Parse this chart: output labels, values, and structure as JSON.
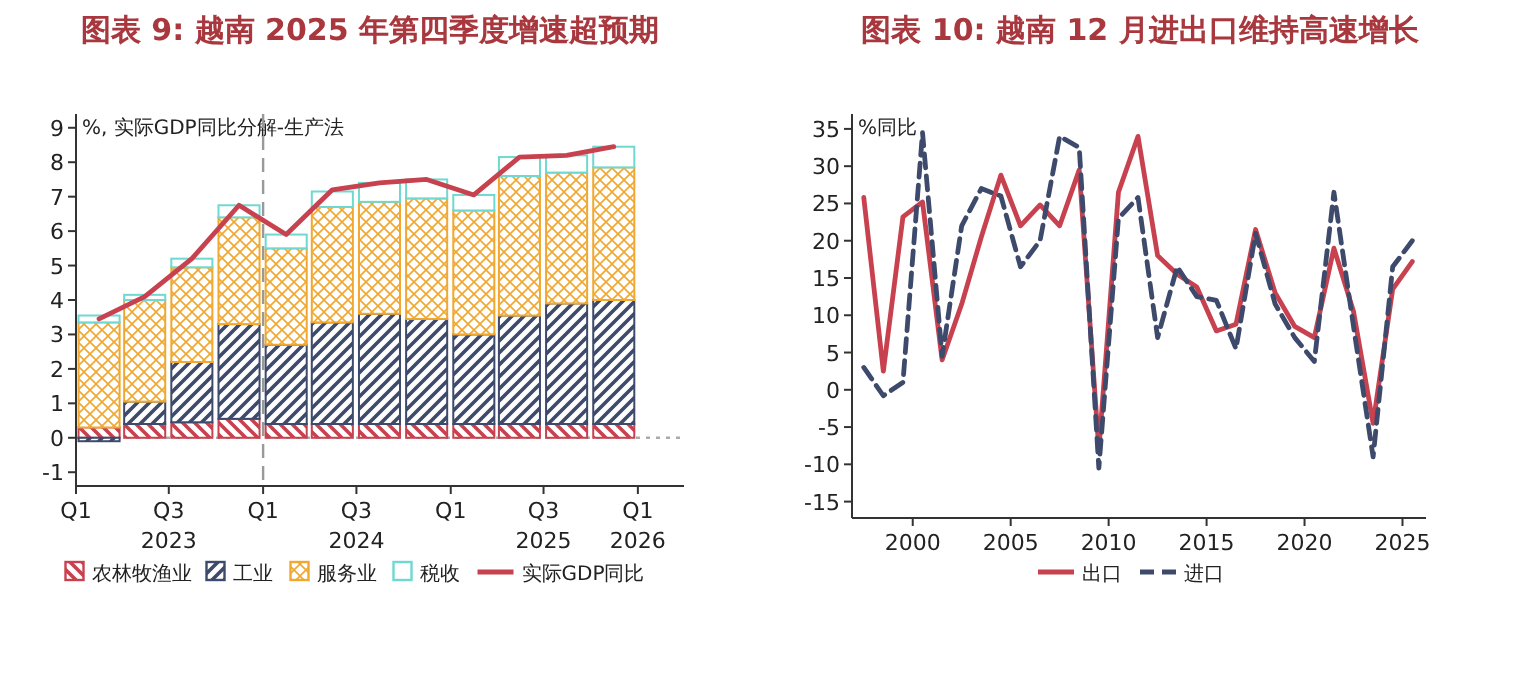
{
  "chart_data": [
    {
      "type": "bar",
      "stacked": true,
      "title": "图表 9:  越南 2025 年第四季度增速超预期",
      "ylabel": "%, 实际GDP同比分解-生产法",
      "x": [
        "2023-02-15",
        "2023-05-15",
        "2023-08-15",
        "2023-11-15",
        "2024-02-15",
        "2024-05-15",
        "2024-08-15",
        "2024-11-15",
        "2025-02-15",
        "2025-05-15",
        "2025-08-15",
        "2025-11-15"
      ],
      "series": [
        {
          "name": "农林牧渔业",
          "color": "#c8414f",
          "values": [
            0.3,
            0.4,
            0.45,
            0.55,
            0.4,
            0.4,
            0.4,
            0.4,
            0.4,
            0.4,
            0.4,
            0.4
          ]
        },
        {
          "name": "工业",
          "color": "#3d4a6b",
          "values": [
            -0.1,
            0.65,
            1.75,
            2.75,
            2.3,
            2.95,
            3.2,
            3.05,
            2.6,
            3.15,
            3.5,
            3.6
          ]
        },
        {
          "name": "服务业",
          "color": "#f0a830",
          "values": [
            3.05,
            2.95,
            2.75,
            3.1,
            2.8,
            3.35,
            3.25,
            3.5,
            3.6,
            4.05,
            3.8,
            3.85
          ]
        },
        {
          "name": "税收",
          "color": "#6fd8d0",
          "values": [
            0.2,
            0.15,
            0.25,
            0.35,
            0.4,
            0.45,
            0.55,
            0.55,
            0.45,
            0.55,
            0.5,
            0.6
          ]
        },
        {
          "name": "实际GDP同比",
          "type": "line",
          "color": "#c8414f",
          "values": [
            3.45,
            4.1,
            5.2,
            6.75,
            5.9,
            7.2,
            7.4,
            7.5,
            7.05,
            8.15,
            8.2,
            8.45
          ]
        }
      ],
      "xlim": [
        "2023-01-01",
        "2026-04-01"
      ],
      "xticks": [
        {
          "value": "2023-01-01",
          "label": "Q1"
        },
        {
          "value": "2023-07-01",
          "label": "Q3\n2023"
        },
        {
          "value": "2024-01-01",
          "label": "Q1"
        },
        {
          "value": "2024-07-01",
          "label": "Q3\n2024"
        },
        {
          "value": "2025-01-01",
          "label": "Q1"
        },
        {
          "value": "2025-07-01",
          "label": "Q3\n2025"
        },
        {
          "value": "2026-01-01",
          "label": "Q1\n2026"
        }
      ],
      "ylim": [
        -1.4,
        9.4
      ],
      "yticks": [
        -1,
        0,
        1,
        2,
        3,
        4,
        5,
        6,
        7,
        8,
        9
      ],
      "ref_lines": [
        {
          "axis": "x",
          "value": "2024-01-01",
          "line_style": "dashed",
          "color": "#999999"
        },
        {
          "axis": "y",
          "value": 0,
          "line_style": "dotted",
          "color": "#aaaaaa"
        }
      ],
      "legend": "bottom"
    },
    {
      "type": "line",
      "title": "图表 10: 越南 12 月进出口维持高速增长",
      "ylabel": "%同比",
      "x": [
        1997.5,
        1998.5,
        1999.5,
        2000.5,
        2001.5,
        2002.5,
        2003.5,
        2004.5,
        2005.5,
        2006.5,
        2007.5,
        2008.5,
        2009.5,
        2010.5,
        2011.5,
        2012.5,
        2013.5,
        2014.5,
        2015.5,
        2016.5,
        2017.5,
        2018.5,
        2019.5,
        2020.5,
        2021.5,
        2022.5,
        2023.5,
        2024.5,
        2025.5
      ],
      "series": [
        {
          "name": "出口",
          "color": "#c8414f",
          "line_style": "solid",
          "values": [
            25.8,
            2.5,
            23.2,
            25.2,
            4.0,
            11.5,
            20.5,
            28.8,
            22.0,
            24.8,
            22.0,
            29.5,
            -8.0,
            26.5,
            34.0,
            18.0,
            15.5,
            13.8,
            7.9,
            8.8,
            21.5,
            13.0,
            8.5,
            7.0,
            19.0,
            10.5,
            -4.5,
            13.5,
            17.2
          ]
        },
        {
          "name": "进口",
          "color": "#3d4a6b",
          "line_style": "dashed",
          "values": [
            3.0,
            -0.8,
            1.0,
            34.5,
            4.5,
            22.0,
            27.0,
            26.0,
            16.5,
            20.0,
            34.0,
            32.5,
            -10.5,
            23.0,
            25.8,
            7.0,
            16.5,
            12.5,
            12.0,
            5.5,
            21.0,
            11.5,
            7.0,
            3.8,
            26.5,
            8.5,
            -9.0,
            16.5,
            20.0
          ]
        }
      ],
      "xlim": [
        1996.9,
        2026.2
      ],
      "xticks": [
        2000,
        2005,
        2010,
        2015,
        2020,
        2025
      ],
      "ylim": [
        -17.2,
        37
      ],
      "yticks": [
        -15,
        -10,
        -5,
        0,
        5,
        10,
        15,
        20,
        25,
        30,
        35
      ],
      "legend": "bottom"
    }
  ]
}
